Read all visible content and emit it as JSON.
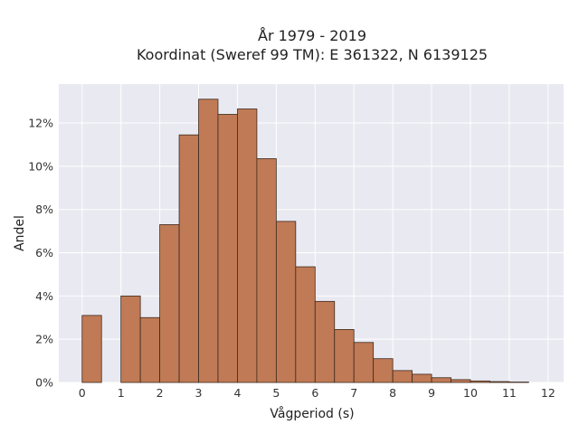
{
  "chart_data": {
    "type": "bar",
    "title_lines": [
      "År 1979 - 2019",
      "Koordinat (Sweref 99 TM): E 361322, N 6139125"
    ],
    "xlabel": "Vågperiod (s)",
    "ylabel": "Andel",
    "x_ticks": [
      "0",
      "1",
      "2",
      "3",
      "4",
      "5",
      "6",
      "7",
      "8",
      "9",
      "10",
      "11",
      "12"
    ],
    "y_ticks": [
      "0%",
      "2%",
      "4%",
      "6%",
      "8%",
      "10%",
      "12%"
    ],
    "xlim": [
      -0.6,
      12.4
    ],
    "ylim": [
      0,
      13.8
    ],
    "bin_width": 0.5,
    "bins": [
      {
        "x": 0.0,
        "value": 3.1
      },
      {
        "x": 1.0,
        "value": 4.0
      },
      {
        "x": 1.5,
        "value": 3.0
      },
      {
        "x": 2.0,
        "value": 7.3
      },
      {
        "x": 2.5,
        "value": 11.45
      },
      {
        "x": 3.0,
        "value": 13.1
      },
      {
        "x": 3.5,
        "value": 12.4
      },
      {
        "x": 4.0,
        "value": 12.65
      },
      {
        "x": 4.5,
        "value": 10.35
      },
      {
        "x": 5.0,
        "value": 7.45
      },
      {
        "x": 5.5,
        "value": 5.35
      },
      {
        "x": 6.0,
        "value": 3.75
      },
      {
        "x": 6.5,
        "value": 2.45
      },
      {
        "x": 7.0,
        "value": 1.85
      },
      {
        "x": 7.5,
        "value": 1.1
      },
      {
        "x": 8.0,
        "value": 0.55
      },
      {
        "x": 8.5,
        "value": 0.38
      },
      {
        "x": 9.0,
        "value": 0.22
      },
      {
        "x": 9.5,
        "value": 0.13
      },
      {
        "x": 10.0,
        "value": 0.07
      },
      {
        "x": 10.5,
        "value": 0.04
      },
      {
        "x": 11.0,
        "value": 0.02
      }
    ],
    "grid": true,
    "colors": {
      "bar_fill": "#c07a55",
      "bar_stroke": "#3d2a1e",
      "plot_bg": "#e9e9f1",
      "grid": "#ffffff"
    }
  }
}
